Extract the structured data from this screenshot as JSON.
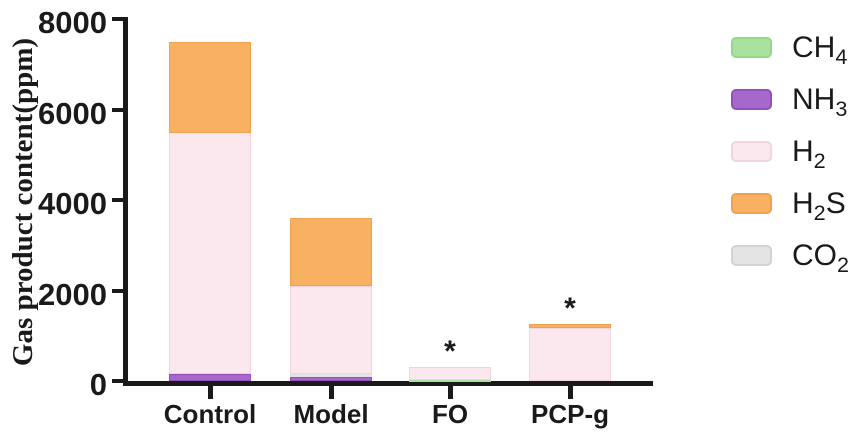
{
  "figure": {
    "background": "#ffffff",
    "axis_color": "#1a1a1a",
    "text_color": "#1a1a1a",
    "y_axis_label": "Gas product content(ppm)"
  },
  "chart_data": {
    "type": "bar",
    "stacked": true,
    "title": "",
    "xlabel": "",
    "ylabel": "Gas product content(ppm)",
    "ylim": [
      0,
      8000
    ],
    "yticks": [
      0,
      2000,
      4000,
      6000,
      8000
    ],
    "grid": false,
    "legend_position": "right",
    "categories": [
      "Control",
      "Model",
      "FO",
      "PCP-g"
    ],
    "series": [
      {
        "name": "CH4",
        "values": [
          0,
          0,
          20,
          0
        ]
      },
      {
        "name": "NH3",
        "values": [
          150,
          90,
          0,
          0
        ]
      },
      {
        "name": "H2",
        "values": [
          5350,
          1940,
          280,
          1170
        ]
      },
      {
        "name": "H2S",
        "values": [
          2000,
          1500,
          0,
          80
        ]
      },
      {
        "name": "CO2",
        "values": [
          0,
          70,
          0,
          0
        ]
      }
    ],
    "bars": [
      {
        "category": "Control",
        "total": 7500,
        "significance": "",
        "segments": [
          {
            "gas": "NH3",
            "value": 150
          },
          {
            "gas": "H2",
            "value": 5350
          },
          {
            "gas": "H2S",
            "value": 2000
          }
        ]
      },
      {
        "category": "Model",
        "total": 3600,
        "significance": "",
        "segments": [
          {
            "gas": "NH3",
            "value": 90
          },
          {
            "gas": "CO2",
            "value": 70
          },
          {
            "gas": "H2",
            "value": 1940
          },
          {
            "gas": "H2S",
            "value": 1500
          }
        ]
      },
      {
        "category": "FO",
        "total": 300,
        "significance": "*",
        "segments": [
          {
            "gas": "CH4",
            "value": 20
          },
          {
            "gas": "H2",
            "value": 280
          }
        ]
      },
      {
        "category": "PCP-g",
        "total": 1250,
        "significance": "*",
        "segments": [
          {
            "gas": "H2",
            "value": 1170
          },
          {
            "gas": "H2S",
            "value": 80
          }
        ]
      }
    ]
  },
  "legend": {
    "entries": [
      {
        "id": "CH4",
        "main": "CH",
        "sub": "4",
        "tail": "",
        "fill": "#a9e29e",
        "border": "#93d886"
      },
      {
        "id": "NH3",
        "main": "NH",
        "sub": "3",
        "tail": "",
        "fill": "#a768cb",
        "border": "#9350b9"
      },
      {
        "id": "H2",
        "main": "H",
        "sub": "2",
        "tail": "",
        "fill": "#fbe8ef",
        "border": "#f3d4de"
      },
      {
        "id": "H2S",
        "main": "H",
        "sub": "2",
        "tail": "S",
        "fill": "#f8b163",
        "border": "#efa14d"
      },
      {
        "id": "CO2",
        "main": "CO",
        "sub": "2",
        "tail": "",
        "fill": "#e5e4e4",
        "border": "#d4d3d3"
      }
    ]
  }
}
